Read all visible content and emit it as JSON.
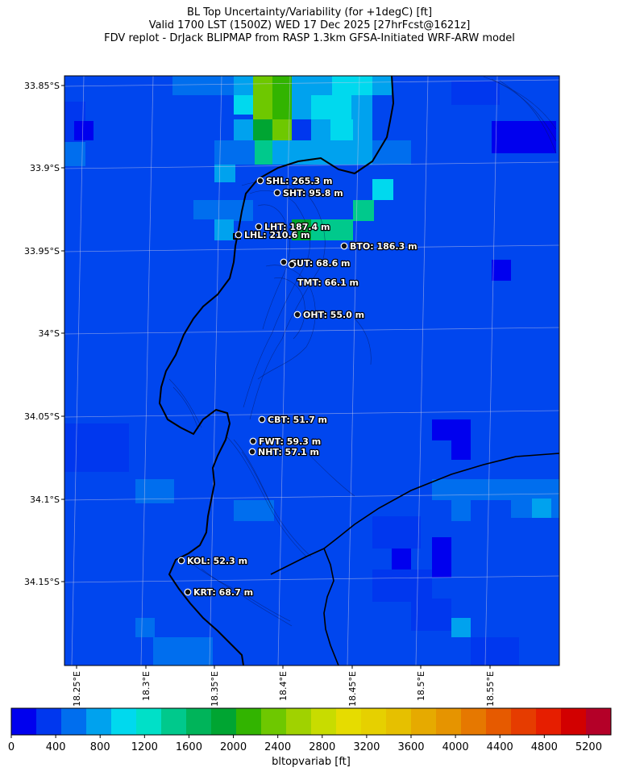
{
  "title": {
    "line1": "BL Top Uncertainty/Variability (for +1degC) [ft]",
    "line2": "Valid 1700 LST (1500Z) WED 17 Dec 2025 [27hrFcst@1621z]",
    "line3": "FDV replot - DrJack BLIPMAP from RASP 1.3km GFSA-Initiated WRF-ARW model"
  },
  "axes": {
    "lat_ticks": [
      "33.85°S",
      "33.9°S",
      "33.95°S",
      "34°S",
      "34.05°S",
      "34.1°S",
      "34.15°S"
    ],
    "lon_ticks": [
      "18.25°E",
      "18.3°E",
      "18.35°E",
      "18.4°E",
      "18.45°E",
      "18.5°E",
      "18.55°E"
    ]
  },
  "stations": [
    {
      "code": "SHL",
      "value": "265.3 m",
      "label": "SHL: 265.3 m"
    },
    {
      "code": "SHT",
      "value": "95.8 m",
      "label": "SHT: 95.8 m"
    },
    {
      "code": "LHT",
      "value": "187.4 m",
      "label": "LHT: 187.4 m"
    },
    {
      "code": "LHL",
      "value": "210.6 m",
      "label": "LHL: 210.6 m"
    },
    {
      "code": "BTO",
      "value": "186.3 m",
      "label": "BTO: 186.3 m"
    },
    {
      "code": "GUT",
      "value": "68.6 m",
      "label": "GUT: 68.6 m"
    },
    {
      "code": "TMT",
      "value": "66.1 m",
      "label": "TMT: 66.1 m"
    },
    {
      "code": "OHT",
      "value": "55.0 m",
      "label": "OHT: 55.0 m"
    },
    {
      "code": "CBT",
      "value": "51.7 m",
      "label": "CBT: 51.7 m"
    },
    {
      "code": "FWT",
      "value": "59.3 m",
      "label": "FWT: 59.3 m"
    },
    {
      "code": "NHT",
      "value": "57.1 m",
      "label": "NHT: 57.1 m"
    },
    {
      "code": "KOL",
      "value": "52.3 m",
      "label": "KOL: 52.3 m"
    },
    {
      "code": "KRT",
      "value": "68.7 m",
      "label": "KRT: 68.7 m"
    }
  ],
  "colorbar": {
    "label": "bltopvariab [ft]",
    "tick_labels": [
      "0",
      "400",
      "800",
      "1200",
      "1600",
      "2000",
      "2400",
      "2800",
      "3200",
      "3600",
      "4000",
      "4400",
      "4800",
      "5200"
    ],
    "colors": [
      "#0000ee",
      "#0037ee",
      "#006eee",
      "#00a2ee",
      "#00d9ee",
      "#00e0c8",
      "#00c98c",
      "#00b45a",
      "#00a532",
      "#32b400",
      "#6ec800",
      "#a0d200",
      "#c8dc00",
      "#e6dc00",
      "#e6d000",
      "#e6c000",
      "#e6aa00",
      "#e69400",
      "#e67800",
      "#e65a00",
      "#e63c00",
      "#e61e00",
      "#d20000",
      "#b40028"
    ]
  }
}
